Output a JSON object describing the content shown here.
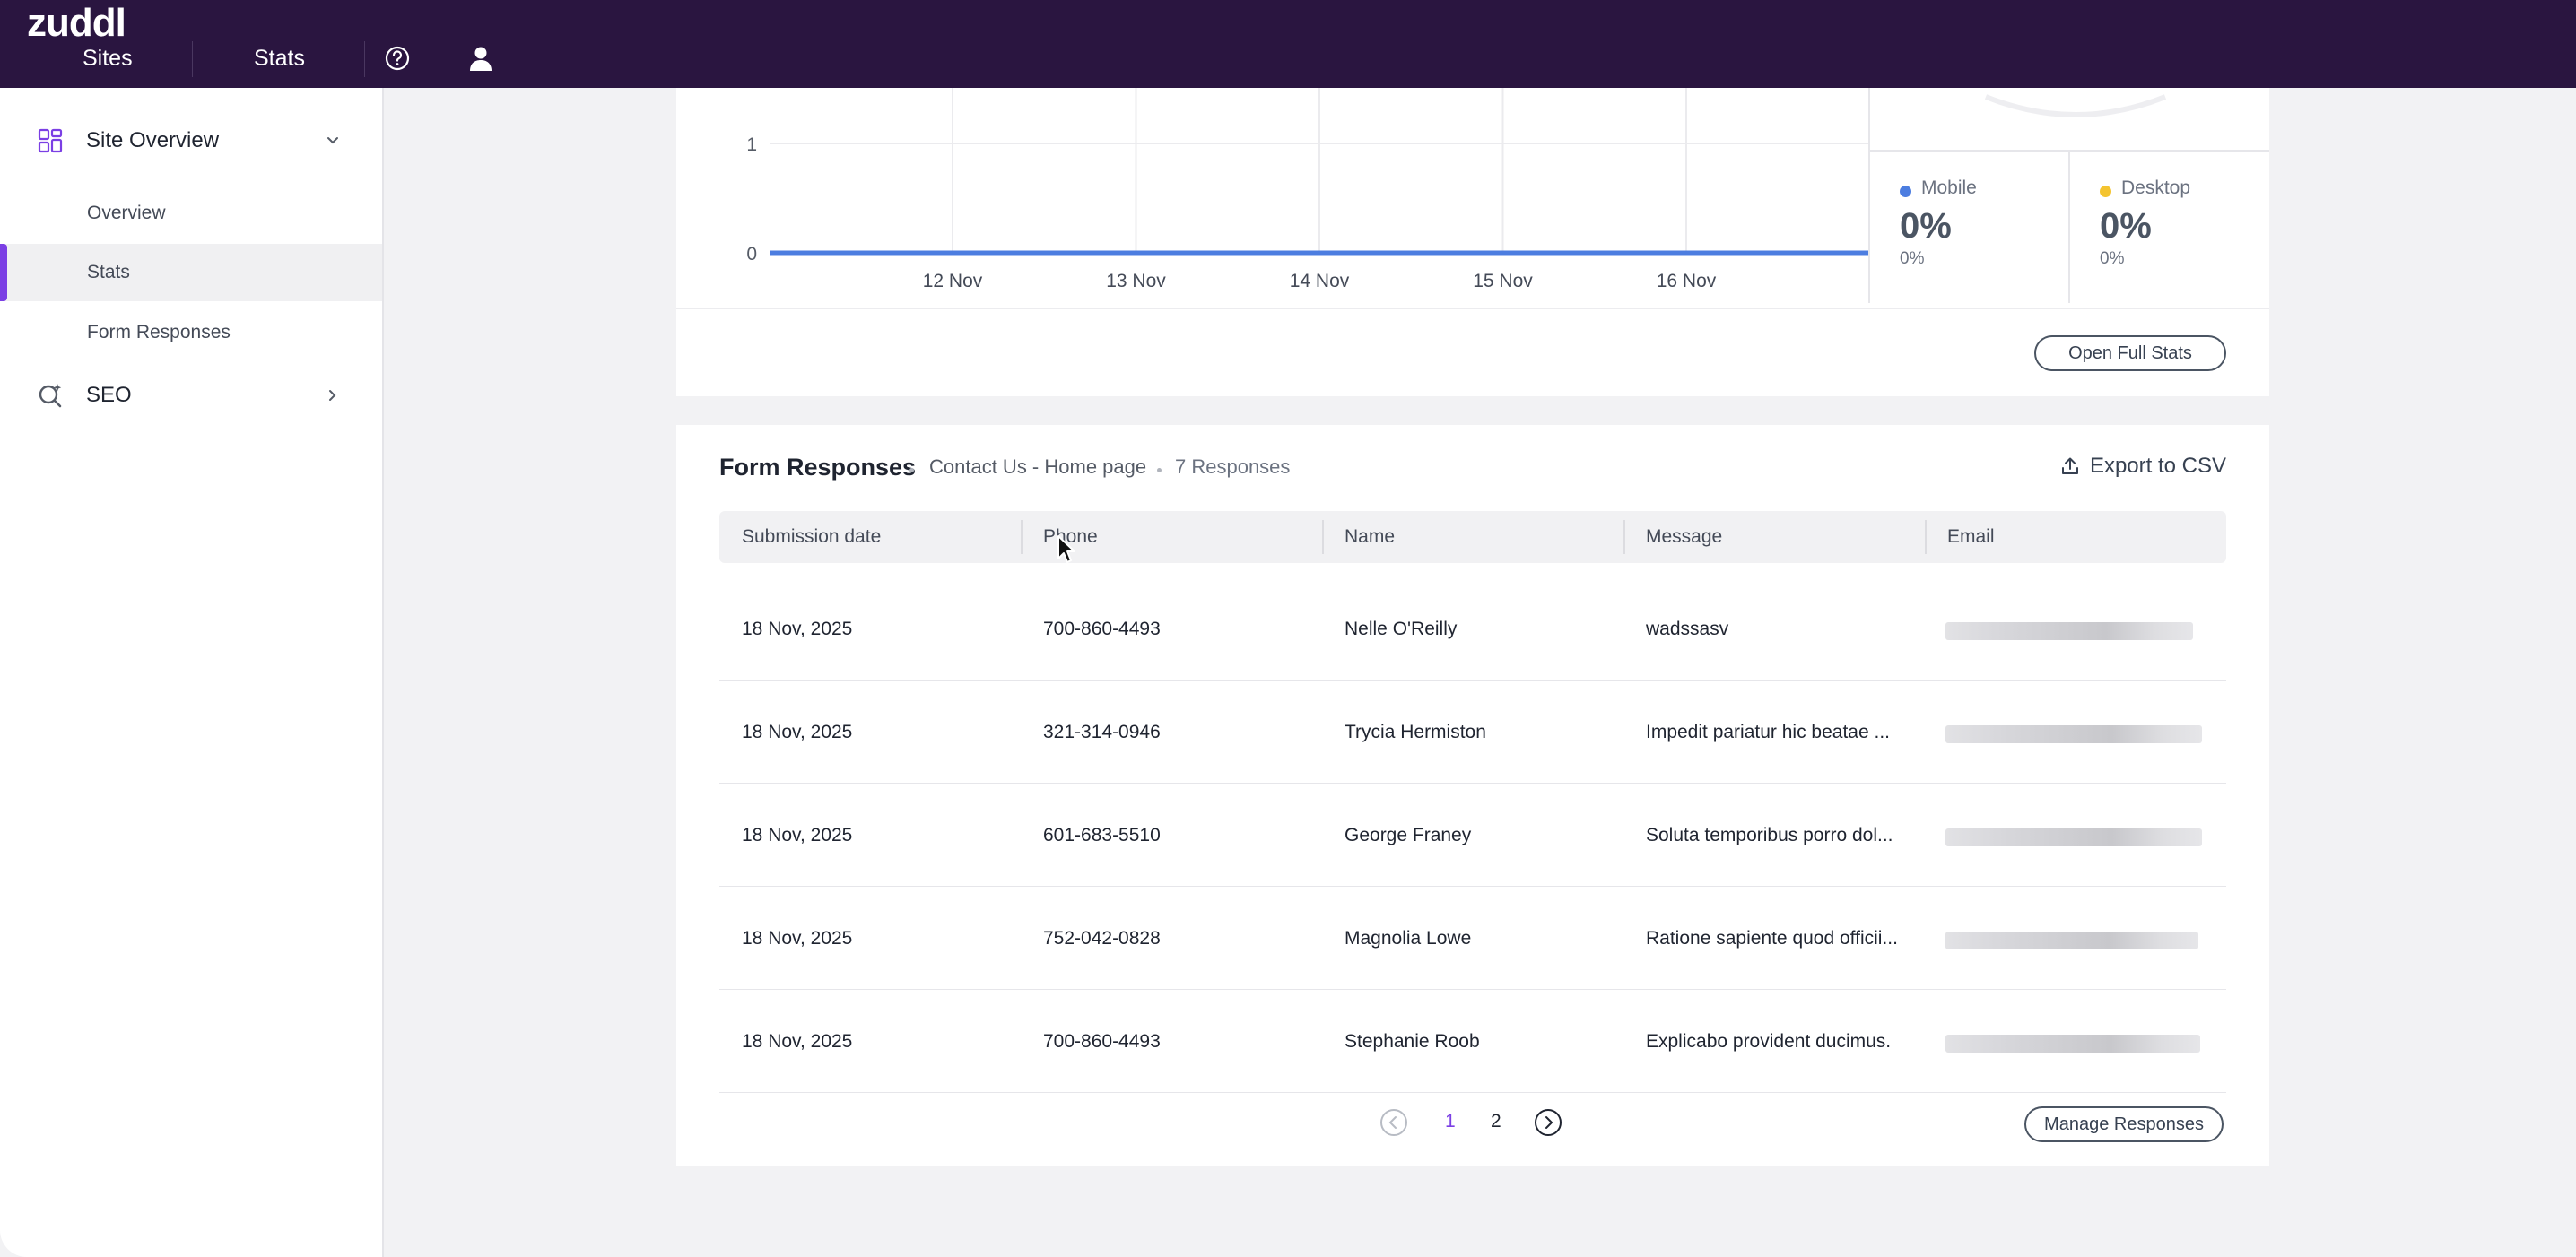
{
  "brand": "zuddl",
  "topnav": {
    "sites": "Sites",
    "stats": "Stats",
    "help_icon": "help-icon",
    "user_icon": "user-icon"
  },
  "sidebar": {
    "site_overview": "Site Overview",
    "items": [
      {
        "label": "Overview",
        "active": false
      },
      {
        "label": "Stats",
        "active": true
      },
      {
        "label": "Form Responses",
        "active": false
      }
    ],
    "seo": "SEO"
  },
  "chart_data": {
    "type": "line",
    "x": [
      "12 Nov",
      "13 Nov",
      "14 Nov",
      "15 Nov",
      "16 Nov"
    ],
    "y_ticks": [
      "0",
      "1"
    ],
    "series": [
      {
        "values": [
          0,
          0,
          0,
          0,
          0
        ],
        "color": "#4c7de0"
      }
    ],
    "ylim": [
      0,
      1
    ],
    "grid": true
  },
  "devices": [
    {
      "name": "Mobile",
      "percent": "0%",
      "sub": "0%",
      "color": "#4c7de0"
    },
    {
      "name": "Desktop",
      "percent": "0%",
      "sub": "0%",
      "color": "#f4c430"
    }
  ],
  "open_full_stats": "Open Full Stats",
  "form_responses": {
    "title": "Form Responses",
    "form_name": "Contact Us - Home page",
    "count": "7 Responses",
    "export_label": "Export to CSV",
    "columns": [
      "Submission date",
      "Phone",
      "Name",
      "Message",
      "Email"
    ],
    "rows": [
      {
        "date": "18 Nov, 2025",
        "phone": "700-860-4493",
        "name": "Nelle O'Reilly",
        "message": "wadssasv"
      },
      {
        "date": "18 Nov, 2025",
        "phone": "321-314-0946",
        "name": "Trycia Hermiston",
        "message": "Impedit pariatur hic beatae ..."
      },
      {
        "date": "18 Nov, 2025",
        "phone": "601-683-5510",
        "name": "George Franey",
        "message": "Soluta temporibus porro dol..."
      },
      {
        "date": "18 Nov, 2025",
        "phone": "752-042-0828",
        "name": "Magnolia Lowe",
        "message": "Ratione sapiente quod officii..."
      },
      {
        "date": "18 Nov, 2025",
        "phone": "700-860-4493",
        "name": "Stephanie Roob",
        "message": "Explicabo provident ducimus."
      }
    ],
    "pagination": {
      "pages": [
        "1",
        "2"
      ],
      "current": "1"
    },
    "manage_label": "Manage Responses"
  },
  "colors": {
    "topbar": "#2a1540",
    "accent": "#7b3fe4",
    "line": "#4c7de0"
  }
}
